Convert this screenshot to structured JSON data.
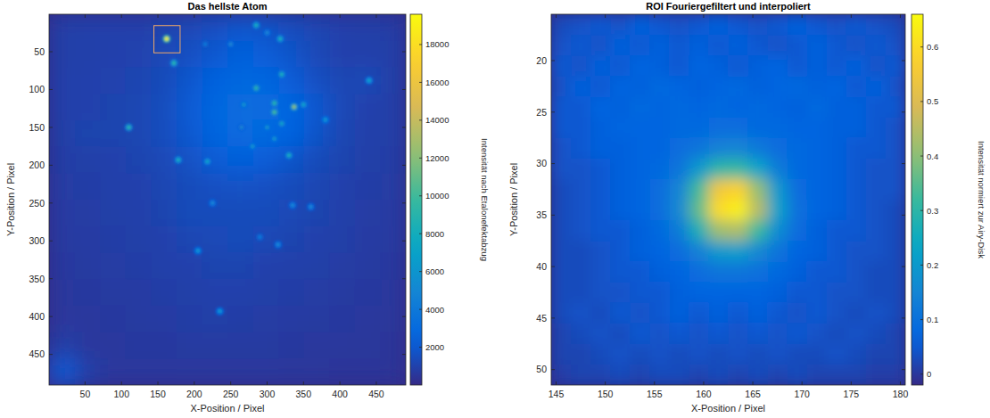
{
  "chart_data": [
    {
      "type": "heatmap",
      "title": "Das hellste Atom",
      "x_label": "X-Position / Pixel",
      "y_label": "Y-Position / Pixel",
      "xlim": [
        0.5,
        490.5
      ],
      "ylim": [
        0.5,
        490.5
      ],
      "xticks": [
        50,
        100,
        150,
        200,
        250,
        300,
        350,
        400,
        450
      ],
      "yticks": [
        50,
        100,
        150,
        200,
        250,
        300,
        350,
        400,
        450
      ],
      "cells": {
        "x": [
          18,
          53,
          88,
          123,
          158,
          193,
          228,
          263,
          298,
          333,
          368,
          403,
          438,
          473
        ],
        "y": [
          18,
          53,
          88,
          123,
          158,
          193,
          228,
          263,
          298,
          333,
          368,
          403,
          438,
          473
        ],
        "values": [
          [
            900,
            950,
            1000,
            1000,
            1100,
            1300,
            1600,
            1900,
            1800,
            1500,
            1200,
            1000,
            900,
            850
          ],
          [
            900,
            950,
            1000,
            1050,
            1300,
            1600,
            2000,
            2300,
            2200,
            1800,
            1300,
            1000,
            950,
            900
          ],
          [
            950,
            1000,
            1050,
            1150,
            1400,
            1900,
            2400,
            2800,
            2700,
            2200,
            1600,
            1200,
            1300,
            900
          ],
          [
            950,
            1000,
            1100,
            1200,
            1500,
            2100,
            2700,
            3200,
            3100,
            2600,
            2000,
            1300,
            1000,
            900
          ],
          [
            900,
            1100,
            1100,
            1200,
            1500,
            2000,
            2600,
            3000,
            2900,
            2500,
            1800,
            1200,
            950,
            900
          ],
          [
            850,
            900,
            1000,
            1100,
            1300,
            1700,
            2100,
            2300,
            2200,
            1800,
            1400,
            1100,
            900,
            850
          ],
          [
            800,
            850,
            950,
            1000,
            1200,
            1400,
            1600,
            1700,
            1600,
            1400,
            1200,
            1000,
            850,
            800
          ],
          [
            750,
            800,
            900,
            950,
            1100,
            1400,
            1400,
            1400,
            1400,
            1300,
            1100,
            950,
            800,
            750
          ],
          [
            700,
            750,
            850,
            900,
            1000,
            1200,
            1300,
            1400,
            1300,
            1100,
            1000,
            900,
            750,
            700
          ],
          [
            650,
            700,
            800,
            850,
            950,
            1000,
            1100,
            1100,
            1000,
            950,
            900,
            800,
            700,
            650
          ],
          [
            600,
            650,
            700,
            750,
            850,
            900,
            1000,
            1000,
            900,
            850,
            800,
            700,
            650,
            600
          ],
          [
            600,
            600,
            650,
            700,
            750,
            850,
            900,
            850,
            800,
            750,
            700,
            650,
            600,
            550
          ],
          [
            900,
            600,
            600,
            650,
            650,
            700,
            700,
            700,
            700,
            650,
            600,
            600,
            550,
            500
          ],
          [
            2200,
            900,
            600,
            600,
            600,
            600,
            600,
            600,
            600,
            550,
            550,
            500,
            500,
            450
          ]
        ]
      },
      "spots": {
        "x": [
          162,
          172,
          285,
          318,
          320,
          285,
          310,
          337,
          350,
          300,
          320,
          310,
          280,
          330,
          310,
          268,
          380,
          440,
          110,
          178,
          218,
          225,
          335,
          360,
          290,
          315,
          205,
          235,
          265,
          250,
          215,
          300
        ],
        "y": [
          33,
          65,
          15,
          33,
          80,
          98,
          118,
          123,
          120,
          150,
          145,
          165,
          175,
          187,
          130,
          120,
          140,
          88,
          150,
          193,
          195,
          250,
          253,
          255,
          295,
          305,
          313,
          393,
          150,
          40,
          40,
          25
        ],
        "values": [
          19000,
          9000,
          8000,
          8000,
          8000,
          9000,
          9000,
          12000,
          7000,
          6000,
          7000,
          6000,
          6000,
          8000,
          10000,
          6000,
          6000,
          7000,
          9000,
          8000,
          7000,
          5000,
          5000,
          5000,
          4000,
          5000,
          6000,
          6000,
          5000,
          5000,
          4000,
          5000
        ]
      },
      "colorbar": {
        "label": "Intensität nach Etalonefektabzug",
        "range": [
          0,
          19600
        ],
        "ticks": [
          2000,
          4000,
          6000,
          8000,
          10000,
          12000,
          14000,
          16000,
          18000
        ]
      }
    },
    {
      "type": "heatmap",
      "title": "ROI Fouriergefiltert und interpoliert",
      "x_label": "X-Position / Pixel",
      "y_label": "Y-Position / Pixel",
      "xlim": [
        144.5,
        180.5
      ],
      "ylim": [
        15.5,
        51.5
      ],
      "xticks": [
        145,
        150,
        155,
        160,
        165,
        170,
        175,
        180
      ],
      "yticks": [
        20,
        25,
        30,
        35,
        40,
        45,
        50
      ],
      "cells": {
        "x": [
          145.5,
          147.5,
          149.5,
          151.5,
          153.5,
          155.5,
          157.5,
          159.5,
          161.5,
          163.5,
          165.5,
          167.5,
          169.5,
          171.5,
          173.5,
          175.5,
          177.5,
          179.5
        ],
        "y": [
          16.5,
          18.5,
          20.5,
          22.5,
          24.5,
          26.5,
          28.5,
          30.5,
          32.5,
          34.5,
          36.5,
          38.5,
          40.5,
          42.5,
          44.5,
          46.5,
          48.5,
          50.5
        ],
        "values": [
          [
            0.03,
            0.04,
            0.05,
            0.04,
            0.06,
            0.05,
            0.04,
            0.05,
            0.06,
            0.05,
            0.04,
            0.05,
            0.06,
            0.05,
            0.04,
            0.05,
            0.04,
            0.03
          ],
          [
            0.04,
            0.05,
            0.04,
            0.06,
            0.05,
            0.06,
            0.05,
            0.06,
            0.05,
            0.06,
            0.05,
            0.04,
            0.05,
            0.06,
            0.05,
            0.04,
            0.05,
            0.04
          ],
          [
            0.05,
            0.04,
            0.06,
            0.05,
            0.07,
            0.06,
            0.05,
            0.07,
            0.06,
            0.05,
            0.06,
            0.07,
            0.05,
            0.06,
            0.05,
            0.06,
            0.04,
            0.05
          ],
          [
            0.04,
            0.06,
            0.05,
            0.07,
            0.06,
            0.08,
            0.07,
            0.06,
            0.07,
            0.08,
            0.06,
            0.07,
            0.08,
            0.06,
            0.07,
            0.05,
            0.06,
            0.04
          ],
          [
            0.05,
            0.05,
            0.07,
            0.06,
            0.08,
            0.07,
            0.08,
            0.07,
            0.08,
            0.07,
            0.08,
            0.07,
            0.06,
            0.08,
            0.06,
            0.06,
            0.05,
            0.05
          ],
          [
            0.05,
            0.05,
            0.06,
            0.07,
            0.07,
            0.07,
            0.08,
            0.08,
            0.09,
            0.09,
            0.08,
            0.08,
            0.07,
            0.07,
            0.06,
            0.06,
            0.05,
            0.04
          ],
          [
            0.04,
            0.05,
            0.06,
            0.06,
            0.07,
            0.07,
            0.09,
            0.11,
            0.14,
            0.15,
            0.12,
            0.09,
            0.08,
            0.07,
            0.06,
            0.05,
            0.05,
            0.04
          ],
          [
            0.04,
            0.04,
            0.05,
            0.06,
            0.07,
            0.08,
            0.11,
            0.2,
            0.3,
            0.31,
            0.23,
            0.13,
            0.08,
            0.07,
            0.06,
            0.05,
            0.04,
            0.04
          ],
          [
            0.03,
            0.04,
            0.05,
            0.06,
            0.07,
            0.09,
            0.15,
            0.33,
            0.55,
            0.58,
            0.41,
            0.2,
            0.09,
            0.07,
            0.06,
            0.05,
            0.04,
            0.04
          ],
          [
            0.03,
            0.04,
            0.05,
            0.06,
            0.07,
            0.09,
            0.16,
            0.36,
            0.6,
            0.64,
            0.45,
            0.22,
            0.1,
            0.07,
            0.06,
            0.05,
            0.04,
            0.03
          ],
          [
            0.03,
            0.04,
            0.05,
            0.05,
            0.06,
            0.08,
            0.13,
            0.27,
            0.42,
            0.44,
            0.32,
            0.17,
            0.09,
            0.06,
            0.05,
            0.05,
            0.04,
            0.03
          ],
          [
            0.03,
            0.03,
            0.04,
            0.05,
            0.06,
            0.07,
            0.09,
            0.14,
            0.2,
            0.21,
            0.16,
            0.11,
            0.07,
            0.06,
            0.05,
            0.04,
            0.04,
            0.03
          ],
          [
            0.03,
            0.03,
            0.04,
            0.05,
            0.05,
            0.06,
            0.07,
            0.09,
            0.11,
            0.11,
            0.1,
            0.08,
            0.06,
            0.05,
            0.05,
            0.04,
            0.03,
            0.03
          ],
          [
            0.03,
            0.03,
            0.04,
            0.04,
            0.05,
            0.05,
            0.06,
            0.07,
            0.07,
            0.07,
            0.07,
            0.06,
            0.05,
            0.05,
            0.04,
            0.04,
            0.03,
            0.03
          ],
          [
            0.03,
            0.04,
            0.03,
            0.05,
            0.04,
            0.05,
            0.06,
            0.05,
            0.06,
            0.05,
            0.06,
            0.05,
            0.04,
            0.05,
            0.04,
            0.03,
            0.04,
            0.03
          ],
          [
            0.02,
            0.03,
            0.04,
            0.03,
            0.05,
            0.04,
            0.05,
            0.04,
            0.05,
            0.04,
            0.05,
            0.04,
            0.05,
            0.04,
            0.03,
            0.04,
            0.03,
            0.02
          ],
          [
            0.02,
            0.02,
            0.03,
            0.04,
            0.03,
            0.04,
            0.03,
            0.04,
            0.03,
            0.04,
            0.03,
            0.04,
            0.03,
            0.03,
            0.04,
            0.03,
            0.02,
            0.02
          ],
          [
            0.01,
            0.02,
            0.02,
            0.03,
            0.02,
            0.03,
            0.03,
            0.02,
            0.03,
            0.02,
            0.03,
            0.02,
            0.03,
            0.02,
            0.02,
            0.02,
            0.01,
            0.01
          ]
        ]
      },
      "colorbar": {
        "label": "Intensität normiert zur Airy-Disk",
        "range": [
          -0.02,
          0.66
        ],
        "ticks": [
          0,
          0.1,
          0.2,
          0.3,
          0.4,
          0.5,
          0.6
        ]
      }
    }
  ]
}
